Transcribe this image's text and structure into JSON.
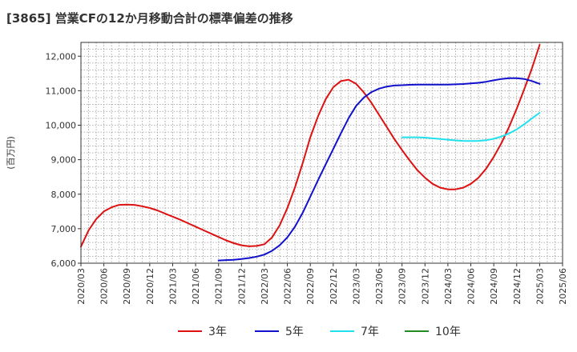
{
  "chart_data": {
    "type": "line",
    "title": "[3865]  営業CFの12か月移動合計の標準偏差の推移",
    "ylabel": "(百万円)",
    "xlabel": "",
    "ylim": [
      6000,
      12400
    ],
    "yticks": [
      6000,
      7000,
      8000,
      9000,
      10000,
      11000,
      12000
    ],
    "ytick_labels": [
      "6,000",
      "7,000",
      "8,000",
      "9,000",
      "10,000",
      "11,000",
      "12,000"
    ],
    "x_start": "2020/03",
    "x_end": "2025/06",
    "xtick_labels": [
      "2020/03",
      "2020/06",
      "2020/09",
      "2020/12",
      "2021/03",
      "2021/06",
      "2021/09",
      "2021/12",
      "2022/03",
      "2022/06",
      "2022/09",
      "2022/12",
      "2023/03",
      "2023/06",
      "2023/09",
      "2023/12",
      "2024/03",
      "2024/06",
      "2024/09",
      "2024/12",
      "2025/03",
      "2025/06"
    ],
    "grid": true,
    "legend_position": "bottom",
    "series": [
      {
        "name": "3年",
        "color": "#dd1111",
        "x": [
          "2020/03",
          "2020/04",
          "2020/05",
          "2020/06",
          "2020/07",
          "2020/08",
          "2020/09",
          "2020/10",
          "2020/11",
          "2020/12",
          "2021/01",
          "2021/02",
          "2021/03",
          "2021/04",
          "2021/05",
          "2021/06",
          "2021/07",
          "2021/08",
          "2021/09",
          "2021/10",
          "2021/11",
          "2021/12",
          "2022/01",
          "2022/02",
          "2022/03",
          "2022/04",
          "2022/05",
          "2022/06",
          "2022/07",
          "2022/08",
          "2022/09",
          "2022/10",
          "2022/11",
          "2022/12",
          "2023/01",
          "2023/02",
          "2023/03",
          "2023/04",
          "2023/05",
          "2023/06",
          "2023/07",
          "2023/08",
          "2023/09",
          "2023/10",
          "2023/11",
          "2023/12",
          "2024/01",
          "2024/02",
          "2024/03",
          "2024/04",
          "2024/05",
          "2024/06",
          "2024/07",
          "2024/08",
          "2024/09",
          "2024/10",
          "2024/11",
          "2024/12",
          "2025/01",
          "2025/02",
          "2025/03"
        ],
        "values": [
          6480,
          6950,
          7280,
          7500,
          7620,
          7690,
          7700,
          7690,
          7650,
          7600,
          7530,
          7440,
          7350,
          7260,
          7160,
          7060,
          6960,
          6860,
          6760,
          6660,
          6580,
          6520,
          6490,
          6500,
          6550,
          6750,
          7100,
          7600,
          8200,
          8900,
          9650,
          10250,
          10750,
          11100,
          11280,
          11320,
          11200,
          10950,
          10650,
          10300,
          9950,
          9600,
          9280,
          8980,
          8700,
          8480,
          8300,
          8190,
          8140,
          8140,
          8190,
          8300,
          8480,
          8740,
          9080,
          9480,
          9950,
          10480,
          11050,
          11650,
          12330
        ]
      },
      {
        "name": "5年",
        "color": "#1111cc",
        "x": [
          "2021/09",
          "2021/10",
          "2021/11",
          "2021/12",
          "2022/01",
          "2022/02",
          "2022/03",
          "2022/04",
          "2022/05",
          "2022/06",
          "2022/07",
          "2022/08",
          "2022/09",
          "2022/10",
          "2022/11",
          "2022/12",
          "2023/01",
          "2023/02",
          "2023/03",
          "2023/04",
          "2023/05",
          "2023/06",
          "2023/07",
          "2023/08",
          "2023/09",
          "2023/10",
          "2023/11",
          "2023/12",
          "2024/01",
          "2024/02",
          "2024/03",
          "2024/04",
          "2024/05",
          "2024/06",
          "2024/07",
          "2024/08",
          "2024/09",
          "2024/10",
          "2024/11",
          "2024/12",
          "2025/01",
          "2025/02",
          "2025/03"
        ],
        "values": [
          6080,
          6090,
          6100,
          6120,
          6150,
          6190,
          6250,
          6360,
          6520,
          6750,
          7060,
          7460,
          7930,
          8400,
          8860,
          9310,
          9760,
          10200,
          10560,
          10800,
          10960,
          11060,
          11120,
          11150,
          11160,
          11170,
          11175,
          11175,
          11175,
          11175,
          11178,
          11185,
          11195,
          11210,
          11230,
          11260,
          11300,
          11340,
          11360,
          11360,
          11340,
          11280,
          11200
        ]
      },
      {
        "name": "7年",
        "color": "#22e0ee",
        "x": [
          "2023/09",
          "2023/10",
          "2023/11",
          "2023/12",
          "2024/01",
          "2024/02",
          "2024/03",
          "2024/04",
          "2024/05",
          "2024/06",
          "2024/07",
          "2024/08",
          "2024/09",
          "2024/10",
          "2024/11",
          "2024/12",
          "2025/01",
          "2025/02",
          "2025/03"
        ],
        "values": [
          9650,
          9650,
          9650,
          9640,
          9620,
          9600,
          9580,
          9560,
          9545,
          9540,
          9545,
          9565,
          9605,
          9670,
          9760,
          9880,
          10030,
          10200,
          10360
        ]
      },
      {
        "name": "10年",
        "color": "#228b22",
        "x": [],
        "values": []
      }
    ]
  }
}
